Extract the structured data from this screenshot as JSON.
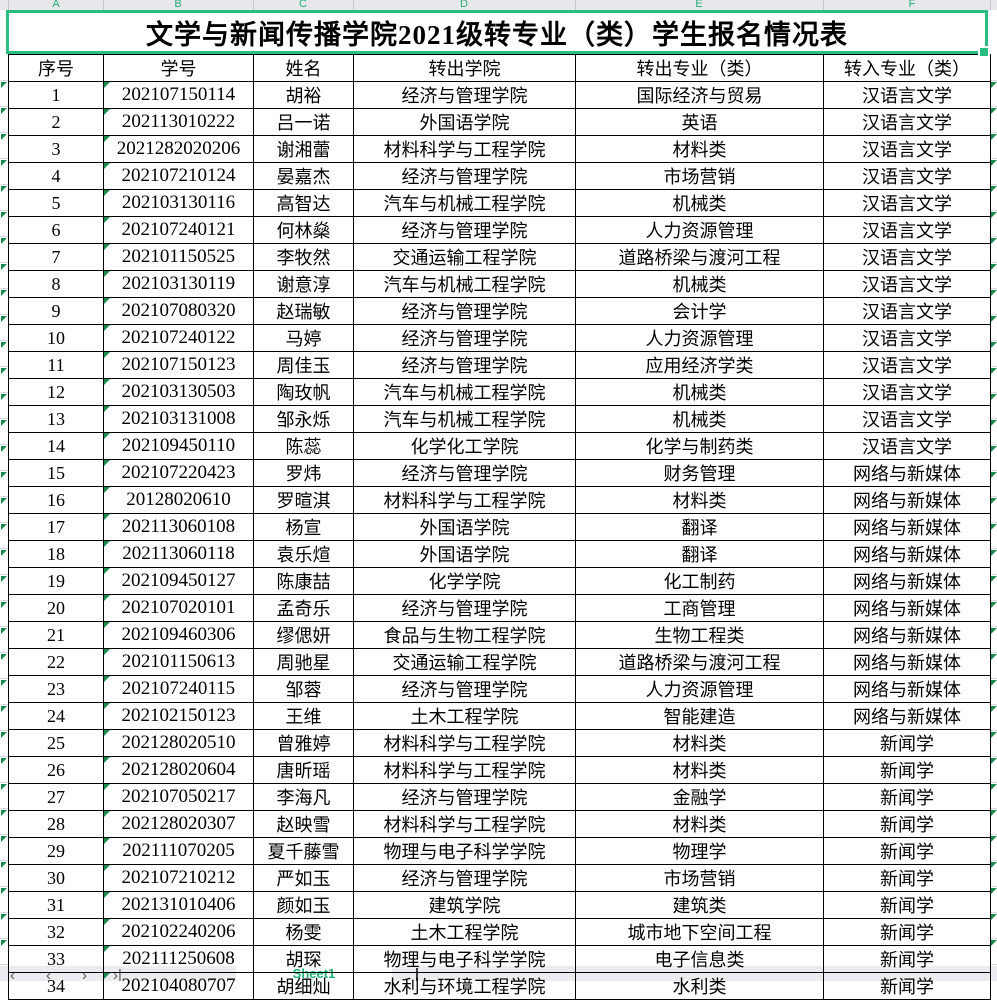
{
  "accent_color": "#2abd80",
  "flag_triangle_color": "#1e8a4e",
  "column_letters": [
    "A",
    "B",
    "C",
    "D",
    "E",
    "F"
  ],
  "title": "文学与新闻传播学院2021级转专业（类）学生报名情况表",
  "table": {
    "headers": [
      "序号",
      "学号",
      "姓名",
      "转出学院",
      "转出专业（类）",
      "转入专业（类）"
    ],
    "rows": [
      [
        "1",
        "202107150114",
        "胡裕",
        "经济与管理学院",
        "国际经济与贸易",
        "汉语言文学"
      ],
      [
        "2",
        "202113010222",
        "吕一诺",
        "外国语学院",
        "英语",
        "汉语言文学"
      ],
      [
        "3",
        "2021282020206",
        "谢湘蕾",
        "材料科学与工程学院",
        "材料类",
        "汉语言文学"
      ],
      [
        "4",
        "202107210124",
        "晏嘉杰",
        "经济与管理学院",
        "市场营销",
        "汉语言文学"
      ],
      [
        "5",
        "202103130116",
        "高智达",
        "汽车与机械工程学院",
        "机械类",
        "汉语言文学"
      ],
      [
        "6",
        "202107240121",
        "何林燊",
        "经济与管理学院",
        "人力资源管理",
        "汉语言文学"
      ],
      [
        "7",
        "202101150525",
        "李牧然",
        "交通运输工程学院",
        "道路桥梁与渡河工程",
        "汉语言文学"
      ],
      [
        "8",
        "202103130119",
        "谢意淳",
        "汽车与机械工程学院",
        "机械类",
        "汉语言文学"
      ],
      [
        "9",
        "202107080320",
        "赵瑞敏",
        "经济与管理学院",
        "会计学",
        "汉语言文学"
      ],
      [
        "10",
        "202107240122",
        "马婷",
        "经济与管理学院",
        "人力资源管理",
        "汉语言文学"
      ],
      [
        "11",
        "202107150123",
        "周佳玉",
        "经济与管理学院",
        "应用经济学类",
        "汉语言文学"
      ],
      [
        "12",
        "202103130503",
        "陶玫帆",
        "汽车与机械工程学院",
        "机械类",
        "汉语言文学"
      ],
      [
        "13",
        "202103131008",
        "邹永烁",
        "汽车与机械工程学院",
        "机械类",
        "汉语言文学"
      ],
      [
        "14",
        "202109450110",
        "陈蕊",
        "化学化工学院",
        "化学与制药类",
        "汉语言文学"
      ],
      [
        "15",
        "202107220423",
        "罗炜",
        "经济与管理学院",
        "财务管理",
        "网络与新媒体"
      ],
      [
        "16",
        "20128020610",
        "罗暄淇",
        "材料科学与工程学院",
        "材料类",
        "网络与新媒体"
      ],
      [
        "17",
        "202113060108",
        "杨宣",
        "外国语学院",
        "翻译",
        "网络与新媒体"
      ],
      [
        "18",
        "202113060118",
        "袁乐煊",
        "外国语学院",
        "翻译",
        "网络与新媒体"
      ],
      [
        "19",
        "202109450127",
        "陈康喆",
        "化学学院",
        "化工制药",
        "网络与新媒体"
      ],
      [
        "20",
        "202107020101",
        "孟奇乐",
        "经济与管理学院",
        "工商管理",
        "网络与新媒体"
      ],
      [
        "21",
        "202109460306",
        "缪偲妍",
        "食品与生物工程学院",
        "生物工程类",
        "网络与新媒体"
      ],
      [
        "22",
        "202101150613",
        "周驰星",
        "交通运输工程学院",
        "道路桥梁与渡河工程",
        "网络与新媒体"
      ],
      [
        "23",
        "202107240115",
        "邹蓉",
        "经济与管理学院",
        "人力资源管理",
        "网络与新媒体"
      ],
      [
        "24",
        "202102150123",
        "王维",
        "土木工程学院",
        "智能建造",
        "网络与新媒体"
      ],
      [
        "25",
        "202128020510",
        "曾雅婷",
        "材料科学与工程学院",
        "材料类",
        "新闻学"
      ],
      [
        "26",
        "202128020604",
        "唐昕瑶",
        "材料科学与工程学院",
        "材料类",
        "新闻学"
      ],
      [
        "27",
        "202107050217",
        "李海凡",
        "经济与管理学院",
        "金融学",
        "新闻学"
      ],
      [
        "28",
        "202128020307",
        "赵映雪",
        "材料科学与工程学院",
        "材料类",
        "新闻学"
      ],
      [
        "29",
        "202111070205",
        "夏千藤雪",
        "物理与电子科学学院",
        "物理学",
        "新闻学"
      ],
      [
        "30",
        "202107210212",
        "严如玉",
        "经济与管理学院",
        "市场营销",
        "新闻学"
      ],
      [
        "31",
        "202131010406",
        "颜如玉",
        "建筑学院",
        "建筑类",
        "新闻学"
      ],
      [
        "32",
        "202102240206",
        "杨雯",
        "土木工程学院",
        "城市地下空间工程",
        "新闻学"
      ],
      [
        "33",
        "202111250608",
        "胡琛",
        "物理与电子科学学院",
        "电子信息类",
        "新闻学"
      ],
      [
        "34",
        "202104080707",
        "胡细灿",
        "水利与环境工程学院",
        "水利类",
        "新闻学"
      ]
    ]
  },
  "sheet_bar": {
    "nav_arrows": [
      "‹",
      "‹",
      "›",
      "›|"
    ],
    "active_tab": "Sheet1"
  }
}
